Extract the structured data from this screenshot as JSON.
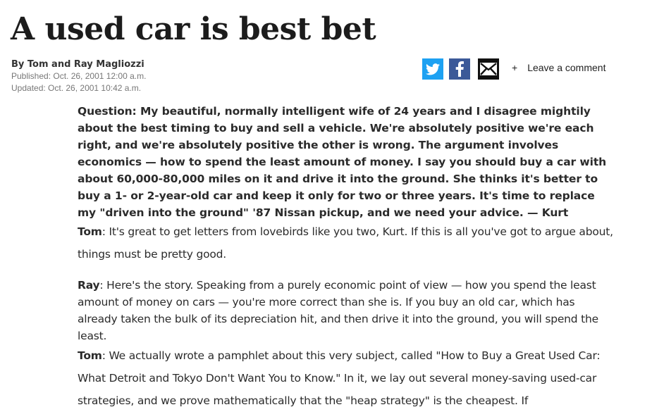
{
  "headline": "A used car is best bet",
  "byline": "By Tom and Ray Magliozzi",
  "published": "Published: Oct. 26, 2001 12:00 a.m.",
  "updated": "Updated: Oct. 26, 2001 10:42 a.m.",
  "share": {
    "icons": [
      "twitter-icon",
      "facebook-icon",
      "email-icon"
    ],
    "colors": {
      "twitter": "#1da1f2",
      "facebook": "#3b5998",
      "email": "#111111"
    }
  },
  "comment": {
    "plus": "+",
    "label": "Leave a comment"
  },
  "article": {
    "question": "Question: My beautiful, normally intelligent wife of 24 years and I disagree mightily about the best timing to buy and sell a vehicle. We're absolutely positive we're each right, and we're absolutely positive the other is wrong. The argument involves economics — how to spend the least amount of money. I say you should buy a car with about 60,000-80,000 miles on it and drive it into the ground. She thinks it's better to buy a 1- or 2-year-old car and keep it only for two or three years. It's time to replace my \"driven into the ground\" '87 Nissan pickup, and we need your advice. — Kurt",
    "p1_speaker": "Tom",
    "p1_text": ": It's great to get letters from lovebirds like you two, Kurt. If this is all you've got to argue about, things must be pretty good.",
    "p2_speaker": "Ray",
    "p2_text": ": Here's the story. Speaking from a purely economic point of view — how you spend the least amount of money on cars — you're more correct than she is. If you buy an old car, which has already taken the bulk of its depreciation hit, and then drive it into the ground, you will spend the least.",
    "p3_speaker": "Tom",
    "p3_text": ": We actually wrote a pamphlet about this very subject, called \"How to Buy a Great Used Car: What Detroit and Tokyo Don't Want You to Know.\" In it, we lay out several money-saving used-car strategies, and we prove mathematically that the \"heap strategy\" is the cheapest. If"
  }
}
